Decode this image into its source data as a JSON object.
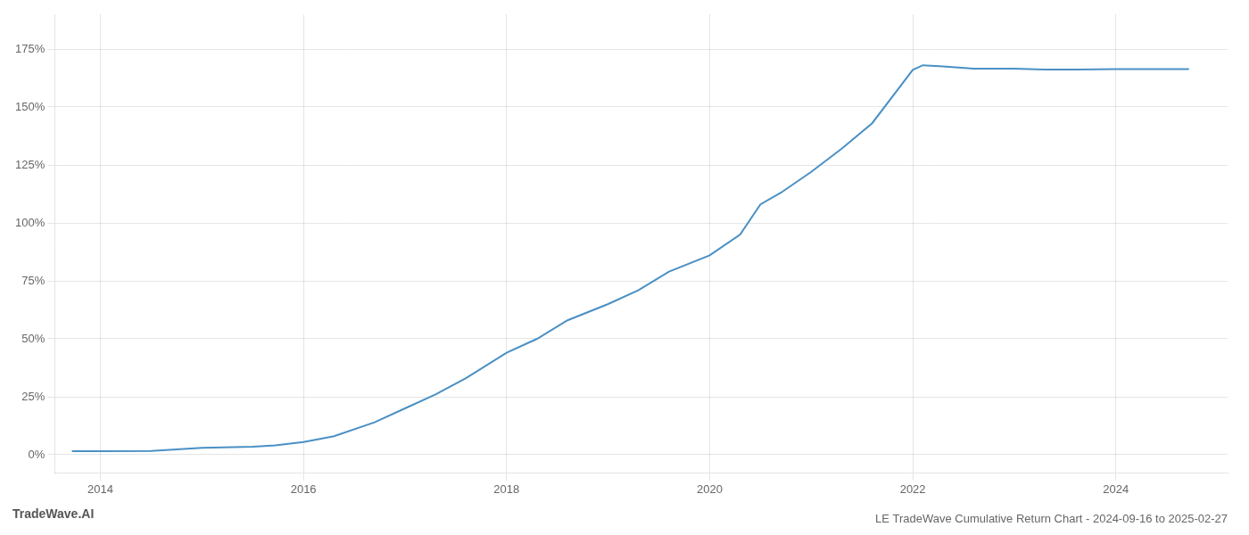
{
  "chart_data": {
    "type": "line",
    "title": "LE TradeWave Cumulative Return Chart - 2024-09-16 to 2025-02-27",
    "annotations": [
      "TradeWave.AI"
    ],
    "color": "#4a90c4",
    "x": [
      2013.72,
      2014.0,
      2014.5,
      2015.0,
      2015.2,
      2015.5,
      2015.72,
      2016.0,
      2016.3,
      2016.7,
      2017.0,
      2017.3,
      2017.6,
      2018.0,
      2018.3,
      2018.6,
      2019.0,
      2019.3,
      2019.6,
      2020.0,
      2020.3,
      2020.5,
      2020.7,
      2021.0,
      2021.3,
      2021.6,
      2022.0,
      2022.1,
      2022.3,
      2022.6,
      2023.0,
      2023.3,
      2023.6,
      2024.0,
      2024.3,
      2024.72
    ],
    "values": [
      1.5,
      1.5,
      1.6,
      3.0,
      3.2,
      3.5,
      4.0,
      5.5,
      8.0,
      14.0,
      20.0,
      26.0,
      33.0,
      44.0,
      50.0,
      58.0,
      65.0,
      71.0,
      79.0,
      86.0,
      95.0,
      108.0,
      113.0,
      122.0,
      132.0,
      143.0,
      166.0,
      168.0,
      167.5,
      166.5,
      166.5,
      166.2,
      166.2,
      166.3,
      166.3,
      166.3
    ],
    "xlim": [
      2013.55,
      2025.1
    ],
    "ylim": [
      -8,
      190
    ],
    "xticks": [
      2014,
      2016,
      2018,
      2020,
      2022,
      2024
    ],
    "yticks": [
      {
        "value": 0,
        "label": "0%"
      },
      {
        "value": 25,
        "label": "25%"
      },
      {
        "value": 50,
        "label": "50%"
      },
      {
        "value": 75,
        "label": "75%"
      },
      {
        "value": 100,
        "label": "100%"
      },
      {
        "value": 125,
        "label": "125%"
      },
      {
        "value": 150,
        "label": "150%"
      },
      {
        "value": 175,
        "label": "175%"
      }
    ],
    "grid": true
  }
}
